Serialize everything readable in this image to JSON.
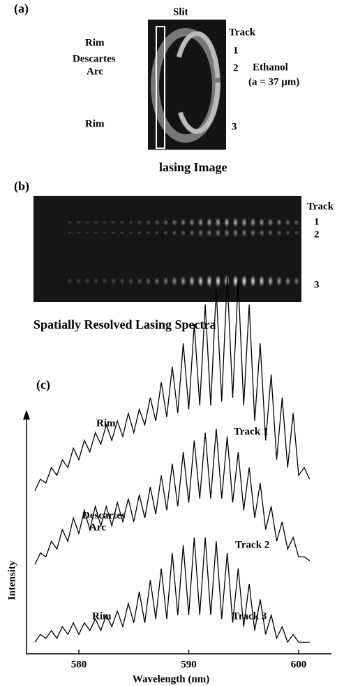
{
  "panel_a": {
    "label": "(a)",
    "slit": "Slit",
    "rim_top": "Rim",
    "descartes": "Descartes",
    "arc": "Arc",
    "rim_bottom": "Rim",
    "track": "Track",
    "track_1": "1",
    "track_2": "2",
    "track_3": "3",
    "ethanol": "Ethanol",
    "radius": "(a = 37 μm)",
    "caption": "lasing Image"
  },
  "panel_b": {
    "label": "(b)",
    "track": "Track",
    "track_1": "1",
    "track_2": "2",
    "track_3": "3",
    "caption": "Spatially Resolved Lasing Spectra"
  },
  "chart_data": {
    "type": "line",
    "panel_label": "(c)",
    "x_label": "Wavelength (nm)",
    "y_label": "Intensity",
    "x": [
      576,
      576.5,
      577,
      577.5,
      578,
      578.5,
      579,
      579.5,
      580,
      580.5,
      581,
      581.5,
      582,
      582.5,
      583,
      583.5,
      584,
      584.5,
      585,
      585.5,
      586,
      586.5,
      587,
      587.5,
      588,
      588.5,
      589,
      589.5,
      590,
      590.5,
      591,
      591.5,
      592,
      592.5,
      593,
      593.5,
      594,
      594.5,
      595,
      595.5,
      596,
      596.5,
      597,
      597.5,
      598,
      598.5,
      599,
      599.5,
      600,
      600.5,
      601
    ],
    "xlim": [
      575,
      603
    ],
    "xticks": [
      580,
      590,
      600
    ],
    "ylim": [
      0,
      100
    ],
    "series": [
      {
        "name": "Track 1",
        "color": "#000000",
        "values": [
          42,
          45,
          44,
          48,
          46,
          50,
          48,
          53,
          50,
          55,
          52,
          57,
          54,
          59,
          55,
          60,
          56,
          62,
          57,
          63,
          59,
          66,
          60,
          70,
          61,
          74,
          62,
          80,
          63,
          85,
          64,
          90,
          64,
          94,
          65,
          97,
          66,
          96,
          64,
          90,
          60,
          80,
          55,
          72,
          50,
          66,
          48,
          62,
          46,
          48,
          45
        ]
      },
      {
        "name": "Track 2",
        "color": "#000000",
        "values": [
          23,
          26,
          25,
          29,
          27,
          32,
          29,
          35,
          31,
          37,
          32,
          38,
          33,
          38,
          33,
          39,
          34,
          40,
          34,
          41,
          35,
          43,
          36,
          46,
          37,
          49,
          38,
          52,
          39,
          55,
          40,
          57,
          40,
          58,
          40,
          56,
          39,
          52,
          37,
          48,
          35,
          44,
          32,
          38,
          29,
          34,
          27,
          30,
          25,
          25,
          24
        ]
      },
      {
        "name": "Track 3",
        "color": "#000000",
        "values": [
          3,
          5,
          4,
          6,
          4,
          7,
          5,
          8,
          5,
          8,
          6,
          9,
          6,
          10,
          7,
          11,
          7,
          13,
          8,
          16,
          8,
          19,
          9,
          22,
          9,
          26,
          10,
          28,
          10,
          30,
          10,
          30,
          10,
          29,
          9,
          26,
          8,
          22,
          7,
          18,
          6,
          14,
          5,
          10,
          4,
          7,
          3,
          5,
          3,
          3,
          3
        ]
      }
    ],
    "annotations": [
      "Rim",
      "Descartes",
      "Arc",
      "Rim"
    ]
  }
}
